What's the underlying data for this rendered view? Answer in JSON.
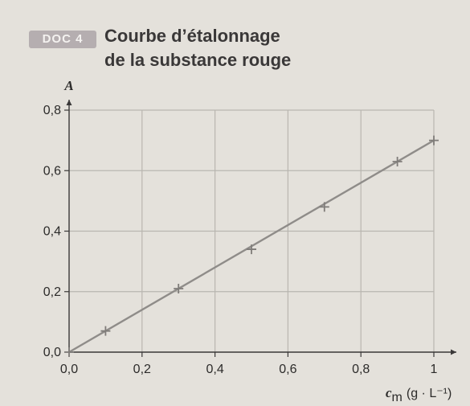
{
  "header": {
    "badge": "DOC 4",
    "title_line1": "Courbe d’étalonnage",
    "title_line2": "de la substance rouge"
  },
  "chart_data": {
    "type": "line",
    "title": "Courbe d’étalonnage de la substance rouge",
    "ylabel": "A",
    "xlabel_symbol": "c",
    "xlabel_sub": "m",
    "xlabel_unit": "(g · L⁻¹)",
    "xlim": [
      0,
      1.0
    ],
    "ylim": [
      0,
      0.8
    ],
    "x_ticks": [
      "0,0",
      "0,2",
      "0,4",
      "0,6",
      "0,8",
      "1"
    ],
    "x_tick_values": [
      0,
      0.2,
      0.4,
      0.6,
      0.8,
      1.0
    ],
    "y_ticks": [
      "0,0",
      "0,2",
      "0,4",
      "0,6",
      "0,8"
    ],
    "y_tick_values": [
      0,
      0.2,
      0.4,
      0.6,
      0.8
    ],
    "grid": true,
    "points": [
      {
        "x": 0.0,
        "y": 0.0
      },
      {
        "x": 0.1,
        "y": 0.07
      },
      {
        "x": 0.3,
        "y": 0.21
      },
      {
        "x": 0.5,
        "y": 0.34
      },
      {
        "x": 0.7,
        "y": 0.48
      },
      {
        "x": 0.9,
        "y": 0.63
      },
      {
        "x": 1.0,
        "y": 0.7
      }
    ],
    "fit_line": {
      "x0": 0.0,
      "y0": 0.0,
      "x1": 1.0,
      "y1": 0.7
    },
    "colors": {
      "grid": "#b9b6b0",
      "line": "#8f8c89",
      "marker": "#7f7c79",
      "axis": "#3a3838"
    }
  }
}
